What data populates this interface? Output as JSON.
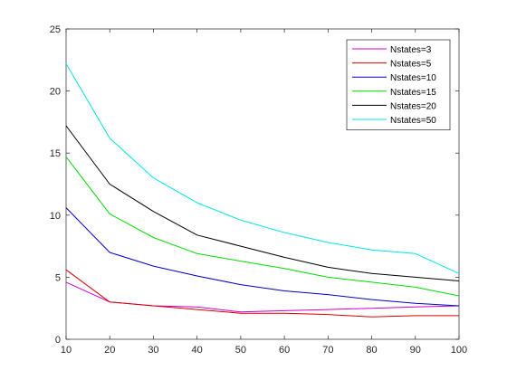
{
  "chart_data": {
    "type": "line",
    "title": "",
    "xlabel": "",
    "ylabel": "",
    "xlim": [
      10,
      100
    ],
    "ylim": [
      0,
      25
    ],
    "xticks": [
      10,
      20,
      30,
      40,
      50,
      60,
      70,
      80,
      90,
      100
    ],
    "yticks": [
      0,
      5,
      10,
      15,
      20,
      25
    ],
    "grid": false,
    "legend_position": "top-right",
    "x": [
      10,
      20,
      30,
      40,
      50,
      60,
      70,
      80,
      90,
      100
    ],
    "series": [
      {
        "name": "Nstates=3",
        "color": "#cc00cc",
        "values": [
          4.6,
          3.0,
          2.7,
          2.6,
          2.2,
          2.3,
          2.4,
          2.5,
          2.6,
          2.7
        ]
      },
      {
        "name": "Nstates=5",
        "color": "#dd0000",
        "values": [
          5.6,
          3.0,
          2.7,
          2.4,
          2.1,
          2.1,
          2.0,
          1.8,
          1.9,
          1.9
        ]
      },
      {
        "name": "Nstates=10",
        "color": "#0000cc",
        "values": [
          10.6,
          7.0,
          5.9,
          5.1,
          4.4,
          3.9,
          3.6,
          3.2,
          2.9,
          2.7
        ]
      },
      {
        "name": "Nstates=15",
        "color": "#00dd00",
        "values": [
          14.7,
          10.1,
          8.2,
          6.9,
          6.3,
          5.7,
          5.0,
          4.6,
          4.2,
          3.5
        ]
      },
      {
        "name": "Nstates=20",
        "color": "#000000",
        "values": [
          17.2,
          12.5,
          10.3,
          8.4,
          7.5,
          6.6,
          5.8,
          5.3,
          5.0,
          4.7
        ]
      },
      {
        "name": "Nstates=50",
        "color": "#00e5e5",
        "values": [
          22.2,
          16.2,
          13.0,
          11.0,
          9.6,
          8.6,
          7.8,
          7.2,
          6.9,
          5.3
        ]
      }
    ]
  }
}
